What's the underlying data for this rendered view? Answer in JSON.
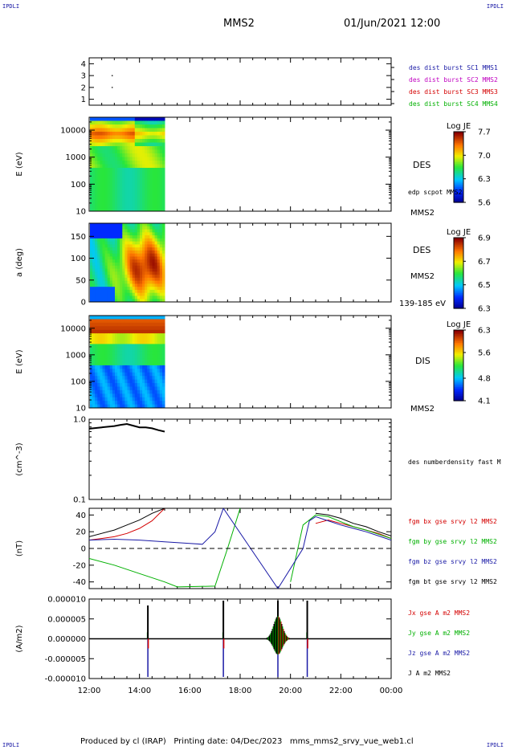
{
  "header": {
    "corner_tl": "IPDLI",
    "corner_tr": "IPDLI",
    "corner_bl": "IPDLI",
    "corner_br": "IPDLI",
    "spacecraft": "MMS2",
    "datetime": "01/Jun/2021 12:00"
  },
  "footer": {
    "text": "Produced by cl (IRAP)   Printing date: 04/Dec/2023   mms_mms2_srvy_vue_web1.cl"
  },
  "chart_data": [
    {
      "type": "scatter",
      "panel": "burst",
      "ylim": [
        0.5,
        4.5
      ],
      "ytick_labels": [
        "4",
        "3",
        "2",
        "1"
      ],
      "points": [
        {
          "x": "12:55",
          "y": 3
        },
        {
          "x": "12:55",
          "y": 2
        }
      ],
      "legend": [
        {
          "text": "des dist burst SC1 MMS1",
          "color": "#1a1aa6"
        },
        {
          "text": "des dist burst SC2 MMS2",
          "color": "#c000c0"
        },
        {
          "text": "des dist burst SC3 MMS3",
          "color": "#d40000"
        },
        {
          "text": "des dist burst SC4 MMS4",
          "color": "#00b000"
        }
      ]
    },
    {
      "type": "heatmap",
      "panel": "des-energy",
      "ylabel": "E (eV)",
      "scale": "log",
      "ylim": [
        10,
        30000
      ],
      "ytick_labels": [
        "10000",
        "1000",
        "100",
        "10"
      ],
      "data_end": "15:00",
      "right_labels": [
        "DES",
        "edp scpot MMS2",
        "MMS2"
      ],
      "colorbar": {
        "title": "Log JE",
        "min": 5.6,
        "max": 7.7,
        "tick_labels": [
          "7.7",
          "7.0",
          "6.3",
          "5.6"
        ]
      }
    },
    {
      "type": "heatmap",
      "panel": "des-pitch",
      "ylabel": "a (deg)",
      "ylim": [
        0,
        180
      ],
      "ytick_labels": [
        "150",
        "100",
        "50",
        "0"
      ],
      "data_end": "15:00",
      "right_labels": [
        "DES",
        "MMS2",
        "139-185 eV"
      ],
      "colorbar": {
        "title": "Log JE",
        "min": 6.3,
        "max": 6.9,
        "tick_labels": [
          "6.9",
          "6.7",
          "6.5",
          "6.3"
        ]
      }
    },
    {
      "type": "heatmap",
      "panel": "dis-energy",
      "ylabel": "E (eV)",
      "scale": "log",
      "ylim": [
        10,
        30000
      ],
      "ytick_labels": [
        "10000",
        "1000",
        "100",
        "10"
      ],
      "data_end": "15:00",
      "right_labels": [
        "DIS",
        "MMS2"
      ],
      "colorbar": {
        "title": "Log JE",
        "min": 4.1,
        "max": 6.3,
        "tick_labels": [
          "6.3",
          "5.6",
          "4.8",
          "4.1"
        ]
      }
    },
    {
      "type": "line",
      "panel": "density",
      "ylabel": "(cm^-3)",
      "scale": "log",
      "ylim": [
        0.1,
        1.0
      ],
      "ytick_labels": [
        "1.0",
        "0.1"
      ],
      "series": [
        {
          "name": "des numberdensity fast M",
          "color": "#000000",
          "x": [
            "12:00",
            "12:30",
            "13:00",
            "13:15",
            "13:30",
            "13:45",
            "14:00",
            "14:15",
            "14:30",
            "14:45",
            "15:00"
          ],
          "values": [
            0.76,
            0.79,
            0.82,
            0.85,
            0.87,
            0.83,
            0.79,
            0.79,
            0.77,
            0.73,
            0.7
          ]
        }
      ]
    },
    {
      "type": "line",
      "panel": "magnetic-field",
      "ylabel": "(nT)",
      "ylim": [
        -48,
        48
      ],
      "ytick_labels": [
        "40",
        "20",
        "0",
        "-20",
        "-40"
      ],
      "series": [
        {
          "name": "fgm bx gse srvy l2 MMS2",
          "color": "#d40000",
          "x": [
            "12:00",
            "13:00",
            "13:30",
            "14:00",
            "14:30",
            "15:00",
            "20:30",
            "21:00",
            "21:30",
            "22:00",
            "22:30",
            "23:00",
            "23:30",
            "00:00"
          ],
          "values": [
            10,
            14,
            18,
            24,
            33,
            48,
            null,
            30,
            34,
            30,
            26,
            22,
            18,
            12
          ]
        },
        {
          "name": "fgm by gse srvy l2 MMS2",
          "color": "#00b000",
          "x": [
            "12:00",
            "13:00",
            "14:00",
            "15:00",
            "15:30",
            "17:00",
            "17:30",
            "18:00",
            "18:30",
            "19:30",
            "20:00",
            "20:30",
            "21:00",
            "21:30",
            "22:00",
            "22:30",
            "23:00",
            "23:30",
            "00:00"
          ],
          "values": [
            -12,
            -20,
            -30,
            -40,
            -46,
            -45,
            0,
            48,
            null,
            null,
            -40,
            28,
            40,
            38,
            32,
            26,
            22,
            17,
            12
          ]
        },
        {
          "name": "fgm bz gse srvy l2 MMS2",
          "color": "#1a1aa6",
          "x": [
            "12:00",
            "13:00",
            "14:00",
            "15:00",
            "16:00",
            "16:30",
            "17:00",
            "17:20",
            "19:30",
            "20:30",
            "20:45",
            "21:00",
            "21:30",
            "22:00",
            "22:30",
            "23:00",
            "23:30",
            "00:00"
          ],
          "values": [
            10,
            11,
            10,
            8,
            6,
            5,
            20,
            48,
            -48,
            0,
            33,
            38,
            33,
            28,
            24,
            20,
            15,
            10
          ]
        },
        {
          "name": "fgm bt gse srvy l2 MMS2",
          "color": "#000000",
          "x": [
            "12:00",
            "13:00",
            "13:30",
            "14:00",
            "14:30",
            "15:00",
            "20:30",
            "21:00",
            "21:30",
            "22:00",
            "22:30",
            "23:00",
            "23:30",
            "00:00"
          ],
          "values": [
            14,
            22,
            28,
            34,
            42,
            48,
            null,
            42,
            40,
            36,
            30,
            26,
            20,
            15
          ]
        }
      ]
    },
    {
      "type": "line",
      "panel": "current-density",
      "ylabel": "(A/m2)",
      "ylim": [
        -1e-05,
        1e-05
      ],
      "ytick_labels": [
        "0.000010",
        "0.000005",
        "0.000000",
        "-0.000005",
        "-0.000010"
      ],
      "spike_times": [
        "14:20",
        "17:20",
        "19:30",
        "20:40"
      ],
      "series": [
        {
          "name": "Jx gse A m2 MMS2",
          "color": "#d40000"
        },
        {
          "name": "Jy gse A m2 MMS2",
          "color": "#00b000"
        },
        {
          "name": "Jz gse A m2 MMS2",
          "color": "#1a1aa6"
        },
        {
          "name": "J A m2 MMS2",
          "color": "#000000"
        }
      ],
      "x_tick_labels": [
        "12:00",
        "14:00",
        "16:00",
        "18:00",
        "20:00",
        "22:00",
        "00:00"
      ]
    }
  ]
}
